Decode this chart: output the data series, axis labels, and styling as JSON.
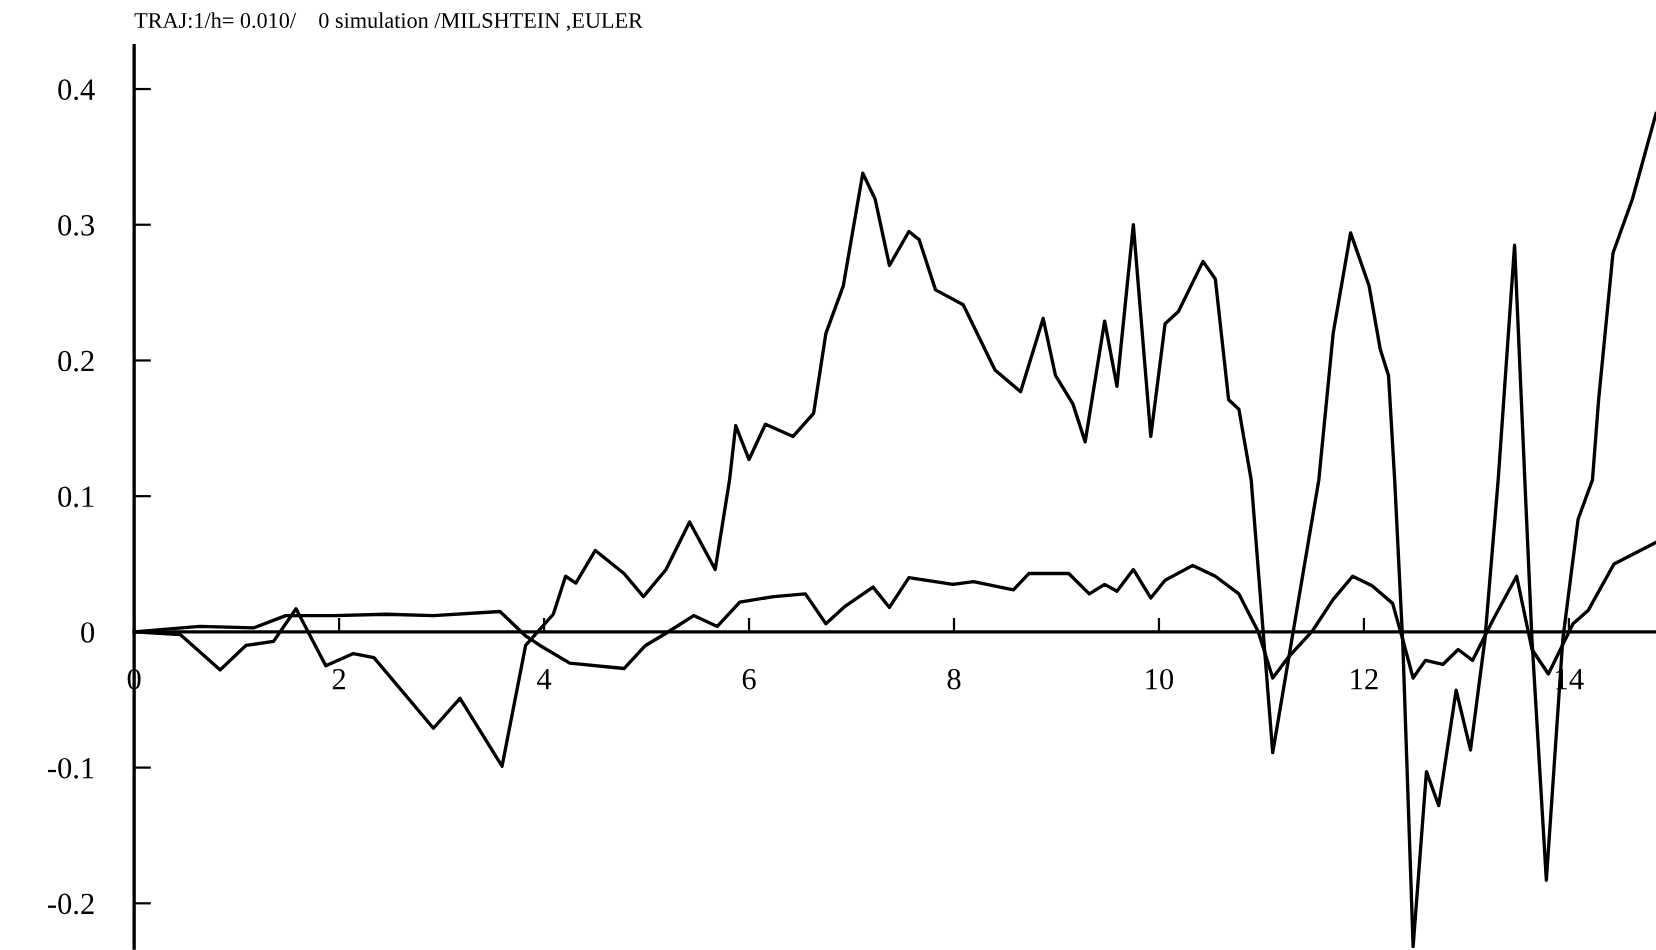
{
  "chart_data": {
    "type": "line",
    "title": "TRAJ:1/h= 0.010/    0 simulation /MILSHTEIN ,EULER",
    "xlim": [
      0,
      14.85
    ],
    "ylim": [
      -0.233,
      0.432
    ],
    "xticks": [
      0,
      2,
      4,
      6,
      8,
      10,
      12,
      14
    ],
    "yticks": [
      -0.2,
      -0.1,
      0,
      0.1,
      0.2,
      0.3,
      0.4
    ],
    "grid": false,
    "marker": "none",
    "line_style": "solid",
    "series": [
      {
        "color": "#000000",
        "x": [
          0,
          0.45,
          0.84,
          1.09,
          1.36,
          1.58,
          1.87,
          2.14,
          2.34,
          2.92,
          3.18,
          3.59,
          3.82,
          4.09,
          4.21,
          4.31,
          4.5,
          4.78,
          4.97,
          5.19,
          5.42,
          5.67,
          5.81,
          5.87,
          6.0,
          6.16,
          6.43,
          6.63,
          6.75,
          6.92,
          7.11,
          7.23,
          7.37,
          7.56,
          7.66,
          7.82,
          8.09,
          8.4,
          8.65,
          8.87,
          8.99,
          9.16,
          9.28,
          9.47,
          9.59,
          9.75,
          9.92,
          10.06,
          10.19,
          10.43,
          10.55,
          10.68,
          10.78,
          10.9,
          11.11,
          11.56,
          11.7,
          11.87,
          12.05,
          12.16,
          12.24,
          12.3,
          12.38,
          12.48,
          12.61,
          12.73,
          12.9,
          13.04,
          13.18,
          13.31,
          13.47,
          13.57,
          13.64,
          13.78,
          13.94,
          14.09,
          14.23,
          14.29,
          14.43,
          14.62,
          14.85
        ],
        "values": [
          0,
          -0.002,
          -0.028,
          -0.01,
          -0.007,
          0.017,
          -0.025,
          -0.016,
          -0.019,
          -0.071,
          -0.049,
          -0.099,
          -0.01,
          0.013,
          0.041,
          0.036,
          0.06,
          0.043,
          0.026,
          0.046,
          0.081,
          0.046,
          0.112,
          0.152,
          0.127,
          0.153,
          0.144,
          0.161,
          0.22,
          0.255,
          0.338,
          0.319,
          0.27,
          0.295,
          0.289,
          0.252,
          0.241,
          0.193,
          0.177,
          0.231,
          0.189,
          0.168,
          0.14,
          0.229,
          0.181,
          0.3,
          0.144,
          0.227,
          0.236,
          0.273,
          0.26,
          0.171,
          0.164,
          0.112,
          -0.089,
          0.112,
          0.22,
          0.294,
          0.255,
          0.208,
          0.189,
          0.112,
          -0.01,
          -0.232,
          -0.103,
          -0.128,
          -0.043,
          -0.087,
          -0.006,
          0.112,
          0.285,
          0.112,
          -0.006,
          -0.183,
          -0.006,
          0.083,
          0.112,
          0.171,
          0.279,
          0.319,
          0.382
        ]
      },
      {
        "color": "#000000",
        "x": [
          0,
          0.64,
          1.17,
          1.48,
          1.95,
          2.46,
          2.92,
          3.57,
          3.82,
          3.96,
          4.25,
          4.78,
          4.99,
          5.19,
          5.46,
          5.69,
          5.91,
          6.24,
          6.55,
          6.75,
          6.94,
          7.21,
          7.37,
          7.56,
          7.99,
          8.19,
          8.58,
          8.73,
          9.12,
          9.32,
          9.47,
          9.59,
          9.75,
          9.92,
          10.06,
          10.33,
          10.55,
          10.78,
          10.97,
          11.11,
          11.27,
          11.5,
          11.7,
          11.89,
          12.08,
          12.28,
          12.38,
          12.48,
          12.6,
          12.77,
          12.92,
          13.06,
          13.26,
          13.49,
          13.64,
          13.8,
          14.04,
          14.19,
          14.44,
          14.85
        ],
        "values": [
          0,
          0.004,
          0.003,
          0.012,
          0.012,
          0.013,
          0.012,
          0.015,
          -0.003,
          -0.01,
          -0.023,
          -0.027,
          -0.01,
          -0.001,
          0.012,
          0.004,
          0.022,
          0.026,
          0.028,
          0.006,
          0.019,
          0.033,
          0.018,
          0.04,
          0.035,
          0.037,
          0.031,
          0.043,
          0.043,
          0.028,
          0.035,
          0.03,
          0.046,
          0.025,
          0.038,
          0.049,
          0.041,
          0.028,
          0.0,
          -0.034,
          -0.018,
          0.001,
          0.024,
          0.041,
          0.034,
          0.021,
          -0.006,
          -0.034,
          -0.021,
          -0.024,
          -0.013,
          -0.021,
          0.009,
          0.041,
          -0.013,
          -0.031,
          0.006,
          0.016,
          0.05,
          0.066
        ]
      }
    ]
  }
}
